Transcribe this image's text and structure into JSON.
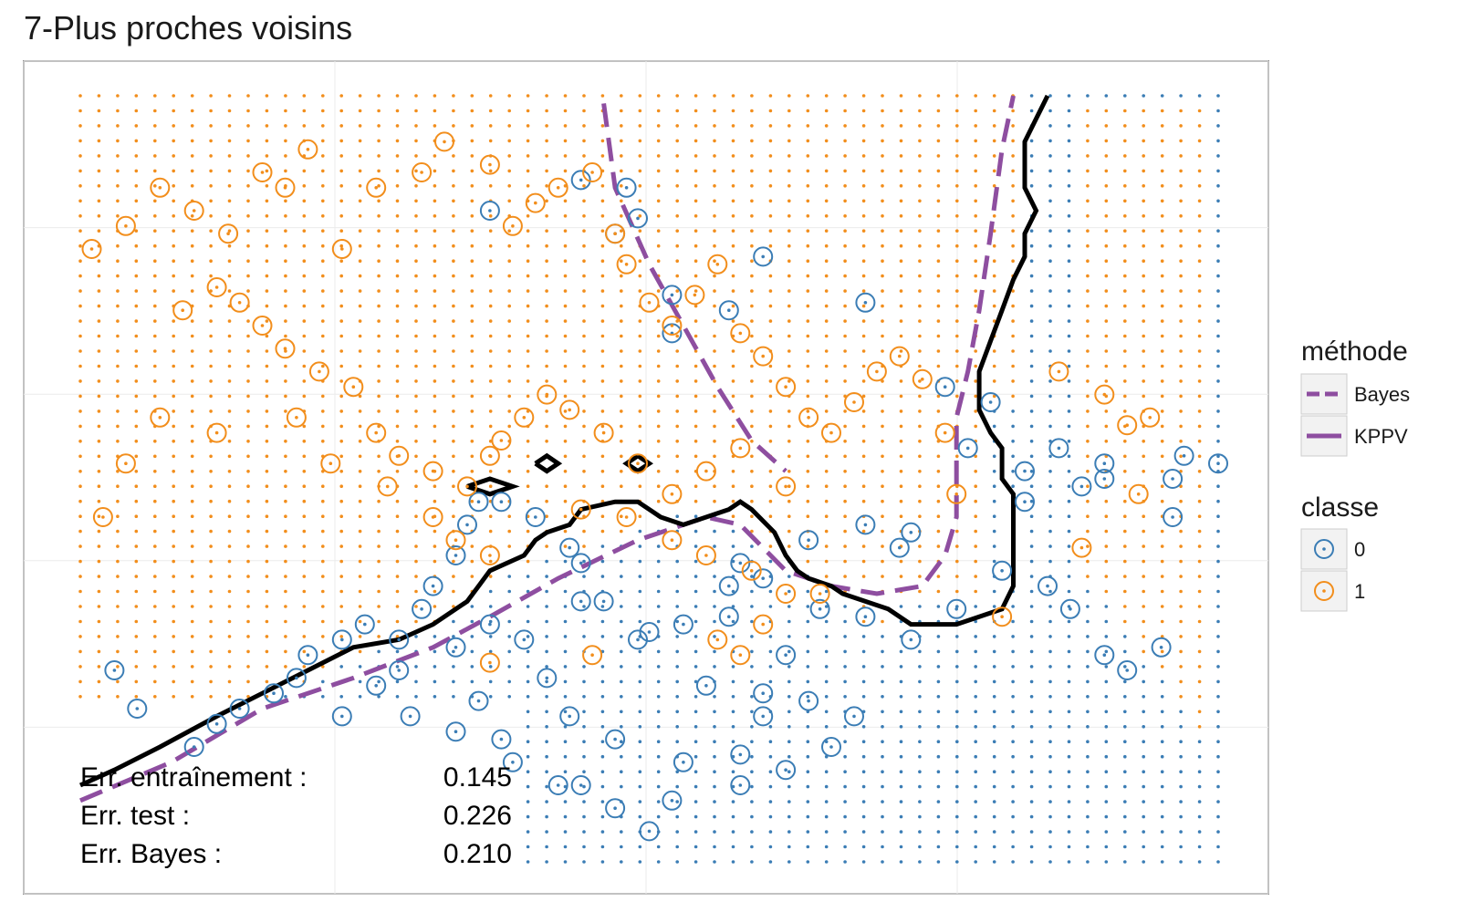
{
  "chart_data": {
    "type": "scatter",
    "title": "7-Plus proches voisins",
    "xlim": [
      0,
      1
    ],
    "ylim": [
      0,
      1
    ],
    "grid": true,
    "colors": {
      "class0": "#3b7db5",
      "class1": "#f28e1c",
      "bayes": "#8e4ea0",
      "kppv": "#000000"
    },
    "legend": {
      "position": "right",
      "method_title": "méthode",
      "method_items": [
        {
          "key": "Bayes",
          "label": "Bayes",
          "style": "dashed"
        },
        {
          "key": "KPPV",
          "label": "KPPV",
          "style": "solid"
        }
      ],
      "class_title": "classe",
      "class_items": [
        {
          "key": "0",
          "label": "0"
        },
        {
          "key": "1",
          "label": "1"
        }
      ]
    },
    "stats": [
      {
        "label": "Err. entraînement :",
        "value": "0.145"
      },
      {
        "label": "Err. test :",
        "value": "0.226"
      },
      {
        "label": "Err. Bayes :",
        "value": "0.210"
      }
    ],
    "kppv_boundary": [
      [
        [
          0.0,
          0.1
        ],
        [
          0.03,
          0.12
        ],
        [
          0.07,
          0.15
        ],
        [
          0.12,
          0.19
        ],
        [
          0.16,
          0.22
        ],
        [
          0.2,
          0.25
        ],
        [
          0.24,
          0.28
        ],
        [
          0.28,
          0.29
        ],
        [
          0.31,
          0.31
        ],
        [
          0.34,
          0.34
        ],
        [
          0.35,
          0.36
        ],
        [
          0.36,
          0.38
        ],
        [
          0.39,
          0.4
        ],
        [
          0.4,
          0.42
        ],
        [
          0.41,
          0.43
        ],
        [
          0.43,
          0.44
        ],
        [
          0.44,
          0.46
        ],
        [
          0.47,
          0.47
        ],
        [
          0.49,
          0.47
        ],
        [
          0.5,
          0.46
        ],
        [
          0.51,
          0.45
        ],
        [
          0.53,
          0.44
        ],
        [
          0.55,
          0.45
        ],
        [
          0.57,
          0.46
        ],
        [
          0.58,
          0.47
        ],
        [
          0.59,
          0.46
        ],
        [
          0.61,
          0.43
        ],
        [
          0.62,
          0.4
        ],
        [
          0.63,
          0.38
        ],
        [
          0.64,
          0.37
        ],
        [
          0.66,
          0.36
        ],
        [
          0.67,
          0.35
        ],
        [
          0.69,
          0.34
        ],
        [
          0.71,
          0.33
        ],
        [
          0.73,
          0.31
        ],
        [
          0.75,
          0.31
        ],
        [
          0.77,
          0.31
        ],
        [
          0.79,
          0.32
        ],
        [
          0.81,
          0.33
        ],
        [
          0.82,
          0.36
        ],
        [
          0.82,
          0.43
        ],
        [
          0.82,
          0.48
        ],
        [
          0.81,
          0.5
        ],
        [
          0.81,
          0.54
        ],
        [
          0.8,
          0.56
        ],
        [
          0.79,
          0.59
        ],
        [
          0.79,
          0.64
        ],
        [
          0.8,
          0.68
        ],
        [
          0.81,
          0.72
        ],
        [
          0.82,
          0.76
        ],
        [
          0.83,
          0.79
        ],
        [
          0.83,
          0.82
        ],
        [
          0.84,
          0.85
        ],
        [
          0.83,
          0.88
        ],
        [
          0.83,
          0.94
        ],
        [
          0.84,
          0.97
        ],
        [
          0.85,
          1.0
        ]
      ],
      [
        [
          0.34,
          0.49
        ],
        [
          0.36,
          0.5
        ],
        [
          0.38,
          0.49
        ],
        [
          0.36,
          0.48
        ],
        [
          0.34,
          0.49
        ]
      ],
      [
        [
          0.4,
          0.52
        ],
        [
          0.41,
          0.53
        ],
        [
          0.42,
          0.52
        ],
        [
          0.41,
          0.51
        ],
        [
          0.4,
          0.52
        ]
      ],
      [
        [
          0.49,
          0.53
        ],
        [
          0.5,
          0.52
        ],
        [
          0.49,
          0.51
        ],
        [
          0.48,
          0.52
        ],
        [
          0.49,
          0.53
        ]
      ]
    ],
    "bayes_boundary": [
      [
        [
          0.0,
          0.08
        ],
        [
          0.08,
          0.13
        ],
        [
          0.16,
          0.2
        ],
        [
          0.24,
          0.24
        ],
        [
          0.31,
          0.28
        ],
        [
          0.36,
          0.32
        ],
        [
          0.42,
          0.37
        ],
        [
          0.49,
          0.42
        ],
        [
          0.55,
          0.45
        ],
        [
          0.58,
          0.44
        ],
        [
          0.6,
          0.41
        ],
        [
          0.62,
          0.38
        ],
        [
          0.66,
          0.36
        ],
        [
          0.7,
          0.35
        ],
        [
          0.74,
          0.36
        ],
        [
          0.76,
          0.4
        ],
        [
          0.77,
          0.45
        ],
        [
          0.77,
          0.52
        ],
        [
          0.77,
          0.58
        ],
        [
          0.78,
          0.64
        ],
        [
          0.79,
          0.72
        ],
        [
          0.8,
          0.82
        ],
        [
          0.81,
          0.93
        ],
        [
          0.82,
          1.0
        ]
      ],
      [
        [
          0.46,
          0.99
        ],
        [
          0.47,
          0.88
        ],
        [
          0.5,
          0.78
        ],
        [
          0.53,
          0.7
        ],
        [
          0.56,
          0.62
        ],
        [
          0.59,
          0.55
        ],
        [
          0.62,
          0.51
        ]
      ],
      [
        [
          0.0,
          0.14
        ],
        [
          0.0,
          0.14
        ]
      ]
    ],
    "train_points_class0": [
      [
        0.36,
        0.85
      ],
      [
        0.44,
        0.89
      ],
      [
        0.48,
        0.88
      ],
      [
        0.47,
        0.82
      ],
      [
        0.52,
        0.69
      ],
      [
        0.57,
        0.72
      ],
      [
        0.49,
        0.84
      ],
      [
        0.52,
        0.74
      ],
      [
        0.6,
        0.79
      ],
      [
        0.69,
        0.73
      ],
      [
        0.76,
        0.62
      ],
      [
        0.78,
        0.54
      ],
      [
        0.8,
        0.6
      ],
      [
        0.83,
        0.51
      ],
      [
        0.86,
        0.54
      ],
      [
        0.88,
        0.49
      ],
      [
        0.9,
        0.5
      ],
      [
        0.9,
        0.52
      ],
      [
        0.96,
        0.5
      ],
      [
        0.97,
        0.53
      ],
      [
        0.96,
        0.45
      ],
      [
        1.0,
        0.52
      ],
      [
        0.83,
        0.47
      ],
      [
        0.73,
        0.43
      ],
      [
        0.72,
        0.41
      ],
      [
        0.69,
        0.44
      ],
      [
        0.64,
        0.42
      ],
      [
        0.6,
        0.37
      ],
      [
        0.57,
        0.36
      ],
      [
        0.58,
        0.39
      ],
      [
        0.57,
        0.32
      ],
      [
        0.53,
        0.31
      ],
      [
        0.5,
        0.3
      ],
      [
        0.49,
        0.29
      ],
      [
        0.46,
        0.34
      ],
      [
        0.44,
        0.34
      ],
      [
        0.44,
        0.39
      ],
      [
        0.43,
        0.41
      ],
      [
        0.4,
        0.45
      ],
      [
        0.37,
        0.47
      ],
      [
        0.35,
        0.47
      ],
      [
        0.34,
        0.44
      ],
      [
        0.33,
        0.4
      ],
      [
        0.31,
        0.36
      ],
      [
        0.3,
        0.33
      ],
      [
        0.28,
        0.29
      ],
      [
        0.28,
        0.25
      ],
      [
        0.26,
        0.23
      ],
      [
        0.25,
        0.31
      ],
      [
        0.23,
        0.29
      ],
      [
        0.2,
        0.27
      ],
      [
        0.19,
        0.24
      ],
      [
        0.17,
        0.22
      ],
      [
        0.14,
        0.2
      ],
      [
        0.12,
        0.18
      ],
      [
        0.1,
        0.15
      ],
      [
        0.05,
        0.2
      ],
      [
        0.03,
        0.25
      ],
      [
        0.23,
        0.19
      ],
      [
        0.29,
        0.19
      ],
      [
        0.33,
        0.17
      ],
      [
        0.37,
        0.16
      ],
      [
        0.38,
        0.13
      ],
      [
        0.42,
        0.1
      ],
      [
        0.44,
        0.1
      ],
      [
        0.47,
        0.07
      ],
      [
        0.5,
        0.04
      ],
      [
        0.52,
        0.08
      ],
      [
        0.58,
        0.14
      ],
      [
        0.6,
        0.19
      ],
      [
        0.64,
        0.21
      ],
      [
        0.68,
        0.19
      ],
      [
        0.66,
        0.15
      ],
      [
        0.62,
        0.12
      ],
      [
        0.58,
        0.1
      ],
      [
        0.53,
        0.13
      ],
      [
        0.47,
        0.16
      ],
      [
        0.43,
        0.19
      ],
      [
        0.41,
        0.24
      ],
      [
        0.39,
        0.29
      ],
      [
        0.36,
        0.31
      ],
      [
        0.33,
        0.28
      ],
      [
        0.35,
        0.21
      ],
      [
        0.55,
        0.23
      ],
      [
        0.6,
        0.22
      ],
      [
        0.62,
        0.27
      ],
      [
        0.65,
        0.33
      ],
      [
        0.69,
        0.32
      ],
      [
        0.73,
        0.29
      ],
      [
        0.77,
        0.33
      ],
      [
        0.81,
        0.38
      ],
      [
        0.85,
        0.36
      ],
      [
        0.87,
        0.33
      ],
      [
        0.9,
        0.27
      ],
      [
        0.92,
        0.25
      ],
      [
        0.95,
        0.28
      ]
    ],
    "train_points_class1": [
      [
        0.01,
        0.8
      ],
      [
        0.04,
        0.83
      ],
      [
        0.07,
        0.88
      ],
      [
        0.1,
        0.85
      ],
      [
        0.13,
        0.82
      ],
      [
        0.16,
        0.9
      ],
      [
        0.18,
        0.88
      ],
      [
        0.2,
        0.93
      ],
      [
        0.23,
        0.8
      ],
      [
        0.26,
        0.88
      ],
      [
        0.3,
        0.9
      ],
      [
        0.32,
        0.94
      ],
      [
        0.36,
        0.91
      ],
      [
        0.38,
        0.83
      ],
      [
        0.4,
        0.86
      ],
      [
        0.42,
        0.88
      ],
      [
        0.45,
        0.9
      ],
      [
        0.47,
        0.82
      ],
      [
        0.48,
        0.78
      ],
      [
        0.5,
        0.73
      ],
      [
        0.52,
        0.7
      ],
      [
        0.54,
        0.74
      ],
      [
        0.56,
        0.78
      ],
      [
        0.58,
        0.69
      ],
      [
        0.6,
        0.66
      ],
      [
        0.62,
        0.62
      ],
      [
        0.64,
        0.58
      ],
      [
        0.66,
        0.56
      ],
      [
        0.68,
        0.6
      ],
      [
        0.7,
        0.64
      ],
      [
        0.72,
        0.66
      ],
      [
        0.74,
        0.63
      ],
      [
        0.76,
        0.56
      ],
      [
        0.77,
        0.48
      ],
      [
        0.62,
        0.49
      ],
      [
        0.58,
        0.54
      ],
      [
        0.55,
        0.51
      ],
      [
        0.52,
        0.48
      ],
      [
        0.49,
        0.52
      ],
      [
        0.46,
        0.56
      ],
      [
        0.43,
        0.59
      ],
      [
        0.41,
        0.61
      ],
      [
        0.39,
        0.58
      ],
      [
        0.37,
        0.55
      ],
      [
        0.36,
        0.53
      ],
      [
        0.34,
        0.49
      ],
      [
        0.31,
        0.51
      ],
      [
        0.28,
        0.53
      ],
      [
        0.26,
        0.56
      ],
      [
        0.24,
        0.62
      ],
      [
        0.21,
        0.64
      ],
      [
        0.18,
        0.67
      ],
      [
        0.16,
        0.7
      ],
      [
        0.14,
        0.73
      ],
      [
        0.12,
        0.75
      ],
      [
        0.09,
        0.72
      ],
      [
        0.07,
        0.58
      ],
      [
        0.04,
        0.52
      ],
      [
        0.02,
        0.45
      ],
      [
        0.12,
        0.56
      ],
      [
        0.19,
        0.58
      ],
      [
        0.22,
        0.52
      ],
      [
        0.27,
        0.49
      ],
      [
        0.31,
        0.45
      ],
      [
        0.33,
        0.42
      ],
      [
        0.36,
        0.4
      ],
      [
        0.44,
        0.46
      ],
      [
        0.48,
        0.45
      ],
      [
        0.52,
        0.42
      ],
      [
        0.55,
        0.4
      ],
      [
        0.59,
        0.38
      ],
      [
        0.62,
        0.35
      ],
      [
        0.65,
        0.35
      ],
      [
        0.6,
        0.31
      ],
      [
        0.56,
        0.29
      ],
      [
        0.58,
        0.27
      ],
      [
        0.45,
        0.27
      ],
      [
        0.36,
        0.26
      ],
      [
        0.86,
        0.64
      ],
      [
        0.9,
        0.61
      ],
      [
        0.92,
        0.57
      ],
      [
        0.94,
        0.58
      ],
      [
        0.93,
        0.48
      ],
      [
        0.88,
        0.41
      ],
      [
        0.81,
        0.32
      ]
    ]
  }
}
